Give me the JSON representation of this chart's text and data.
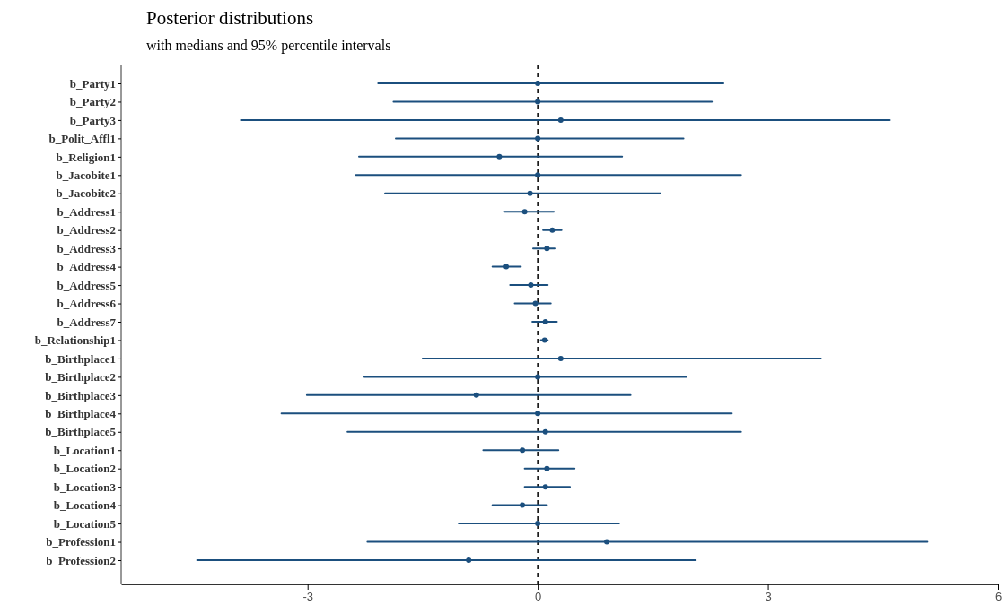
{
  "chart_data": {
    "type": "scatter",
    "orientation": "horizontal",
    "title": "Posterior distributions",
    "subtitle": "with medians and 95% percentile intervals",
    "categories": [
      "b_Party1",
      "b_Party2",
      "b_Party3",
      "b_Polit_Affl1",
      "b_Religion1",
      "b_Jacobite1",
      "b_Jacobite2",
      "b_Address1",
      "b_Address2",
      "b_Address3",
      "b_Address4",
      "b_Address5",
      "b_Address6",
      "b_Address7",
      "b_Relationship1",
      "b_Birthplace1",
      "b_Birthplace2",
      "b_Birthplace3",
      "b_Birthplace4",
      "b_Birthplace5",
      "b_Location1",
      "b_Location2",
      "b_Location3",
      "b_Location4",
      "b_Location5",
      "b_Profession1",
      "b_Profession2"
    ],
    "series": [
      {
        "color": "#1b4f7e",
        "values": [
          0.0,
          0.0,
          0.3,
          0.0,
          -0.5,
          0.0,
          -0.1,
          -0.17,
          0.19,
          0.12,
          -0.41,
          -0.09,
          -0.03,
          0.1,
          0.09,
          0.3,
          0.0,
          -0.8,
          0.0,
          0.1,
          -0.2,
          0.12,
          0.1,
          -0.2,
          0.0,
          0.9,
          -0.9
        ],
        "errors": [
          [
            -2.08,
            2.42
          ],
          [
            -1.88,
            2.27
          ],
          [
            -3.87,
            4.59
          ],
          [
            -1.85,
            1.9
          ],
          [
            -2.33,
            1.1
          ],
          [
            -2.37,
            2.65
          ],
          [
            -1.99,
            1.6
          ],
          [
            -0.43,
            0.21
          ],
          [
            0.07,
            0.31
          ],
          [
            -0.06,
            0.22
          ],
          [
            -0.59,
            -0.22
          ],
          [
            -0.36,
            0.13
          ],
          [
            -0.3,
            0.17
          ],
          [
            -0.07,
            0.25
          ],
          [
            0.04,
            0.13
          ],
          [
            -1.5,
            3.69
          ],
          [
            -2.26,
            1.94
          ],
          [
            -3.01,
            1.21
          ],
          [
            -3.34,
            2.53
          ],
          [
            -2.48,
            2.65
          ],
          [
            -0.71,
            0.27
          ],
          [
            -0.17,
            0.48
          ],
          [
            -0.17,
            0.42
          ],
          [
            -0.59,
            0.12
          ],
          [
            -1.03,
            1.06
          ],
          [
            -2.22,
            5.08
          ],
          [
            -4.44,
            2.06
          ]
        ]
      }
    ],
    "xlim": [
      -5.43,
      6.0
    ],
    "xticks": [
      -3,
      0,
      3,
      6
    ],
    "grid": false,
    "ref_lines": [
      {
        "axis": "x",
        "value": 0,
        "color": "#000000",
        "line_style": "dashed"
      }
    ]
  }
}
